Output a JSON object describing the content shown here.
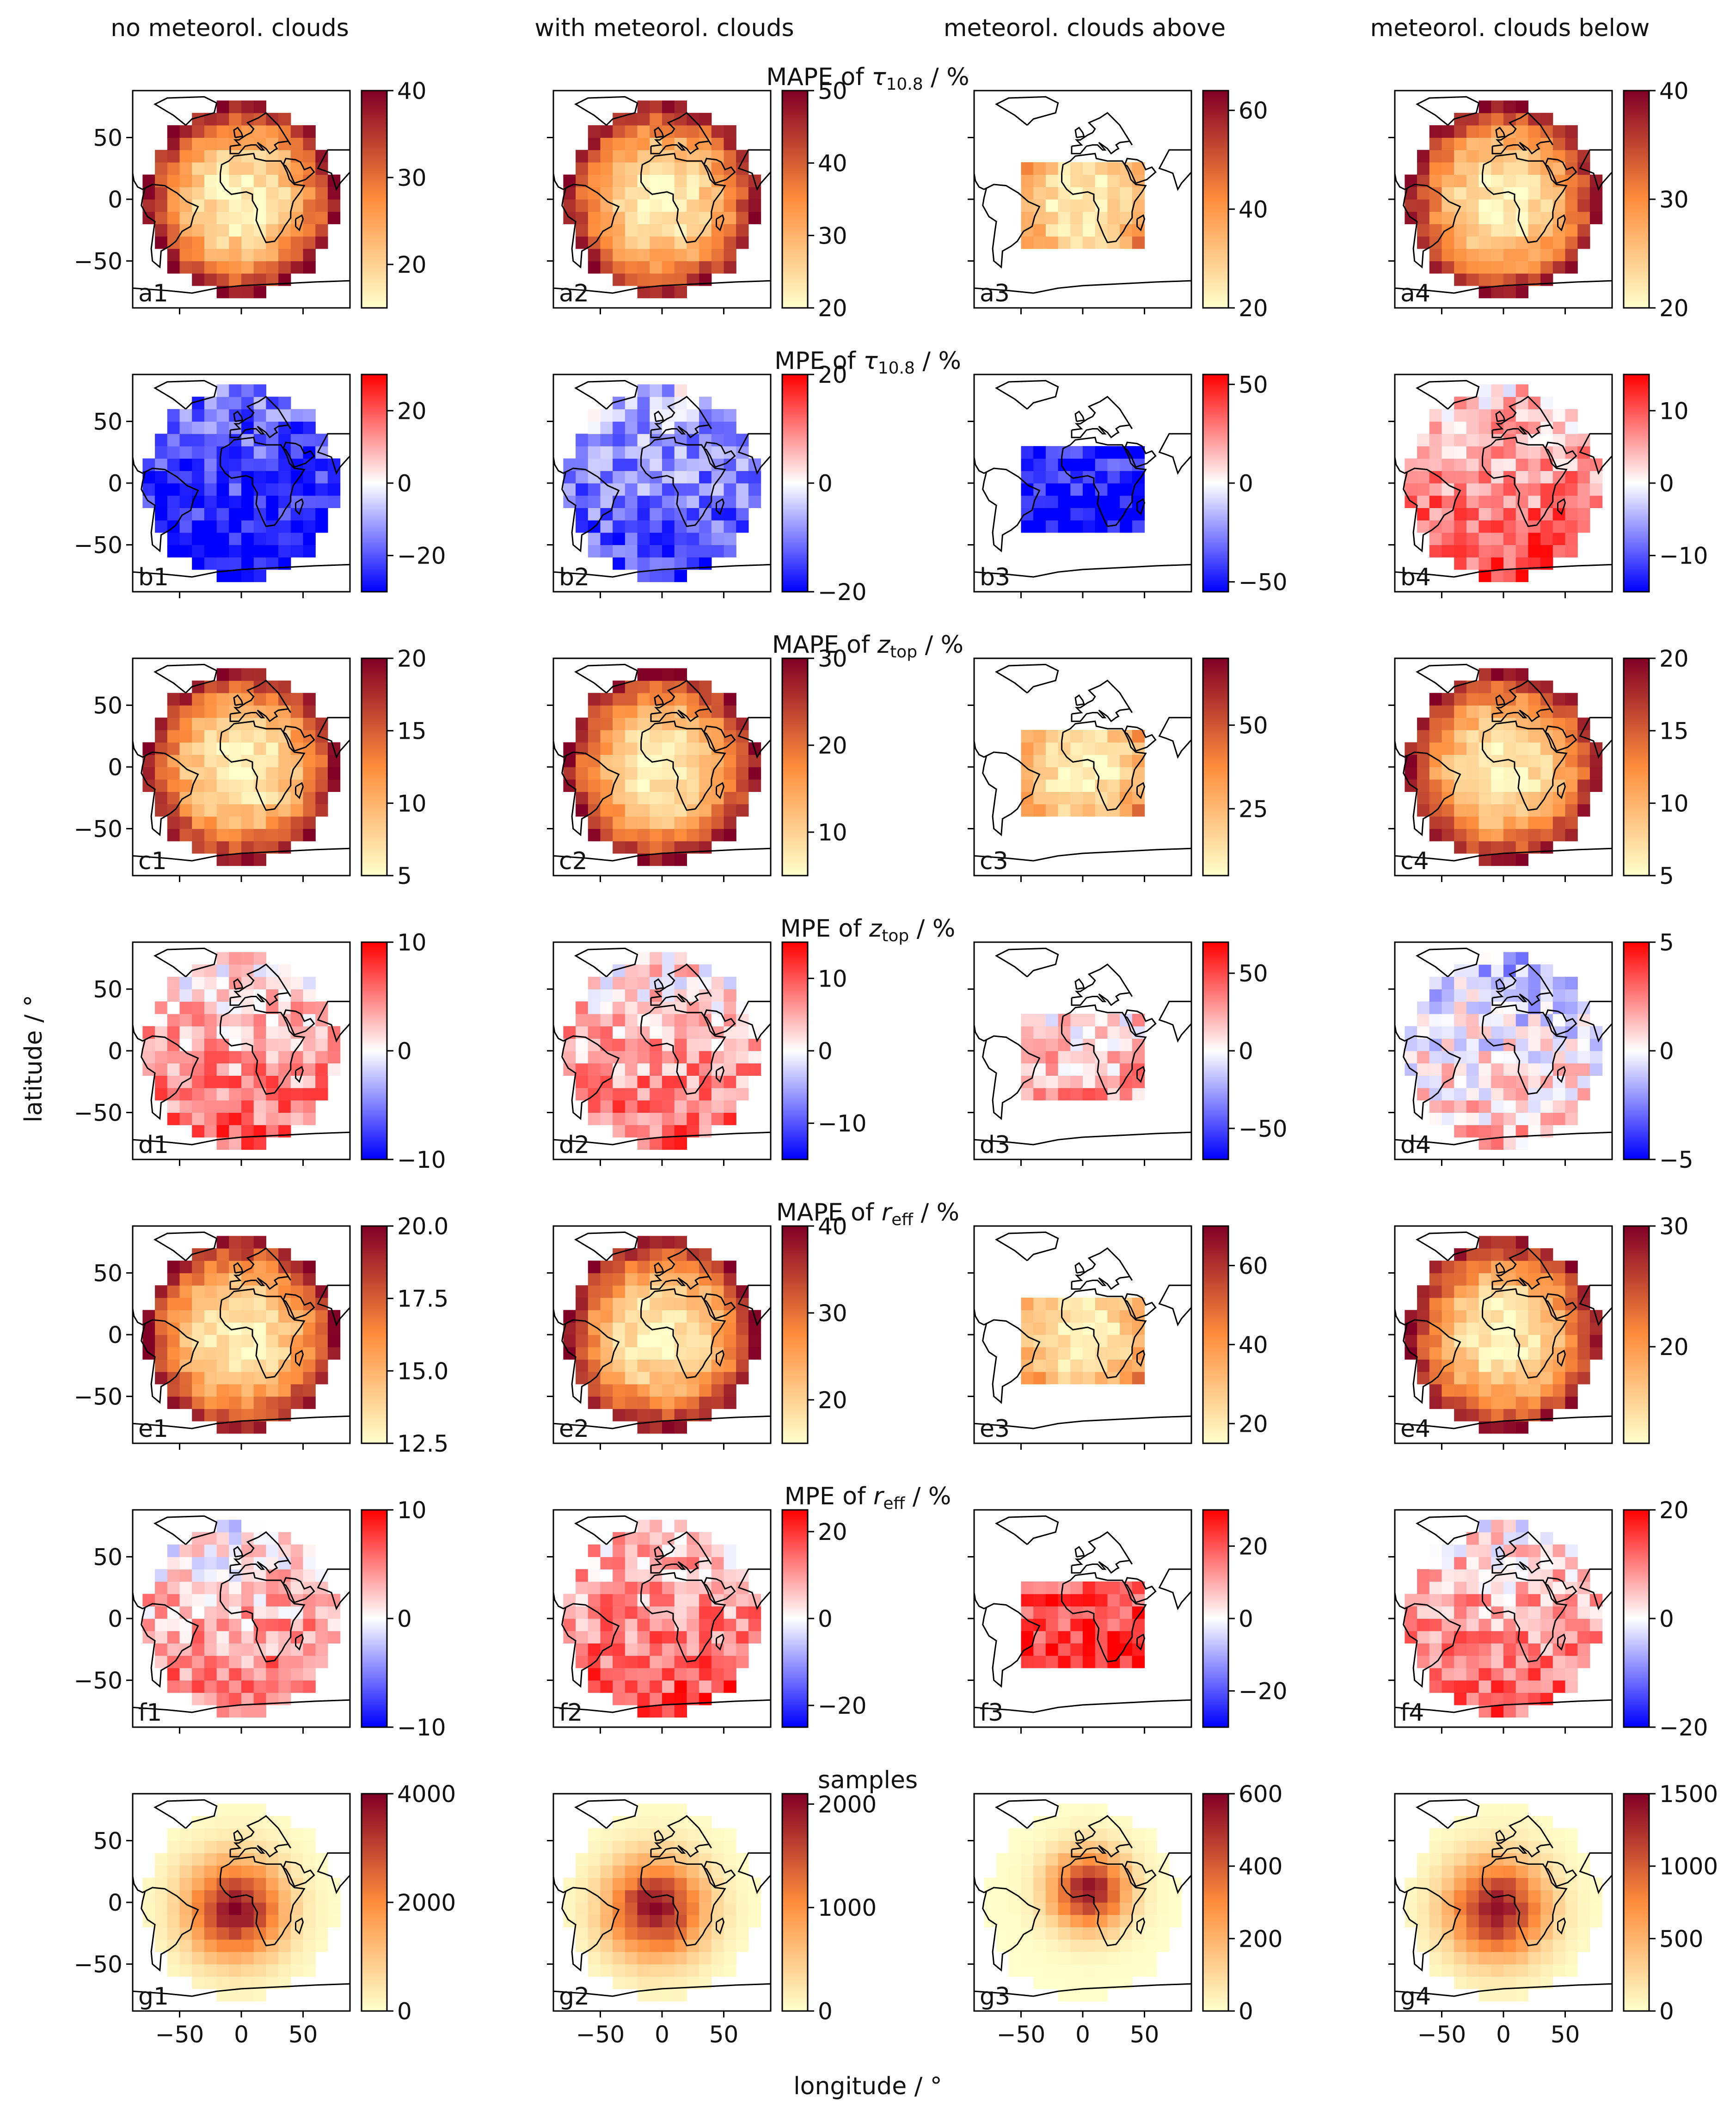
{
  "chart_data": {
    "type": "heatmap",
    "columns": [
      "no meteorol. clouds",
      "with meteorol. clouds",
      "meteorol. clouds above",
      "meteorol. clouds below"
    ],
    "rows": [
      {
        "title_main": "MAPE of ",
        "title_var": "τ",
        "title_sub": "10.8",
        "title_unit": " / %",
        "cmap": "seq",
        "panels": [
          {
            "label": "a1",
            "ticks": [
              "20",
              "30",
              "40"
            ],
            "vmin": 15,
            "vmax": 40,
            "tickvals": [
              20,
              30,
              40
            ],
            "disk": "full"
          },
          {
            "label": "a2",
            "ticks": [
              "20",
              "30",
              "40",
              "50"
            ],
            "vmin": 20,
            "vmax": 50,
            "tickvals": [
              20,
              30,
              40,
              50
            ],
            "disk": "full"
          },
          {
            "label": "a3",
            "ticks": [
              "20",
              "40",
              "60"
            ],
            "vmin": 20,
            "vmax": 64,
            "tickvals": [
              20,
              40,
              60
            ],
            "disk": "above"
          },
          {
            "label": "a4",
            "ticks": [
              "20",
              "30",
              "40"
            ],
            "vmin": 20,
            "vmax": 40,
            "tickvals": [
              20,
              30,
              40
            ],
            "disk": "full"
          }
        ]
      },
      {
        "title_main": "MPE of ",
        "title_var": "τ",
        "title_sub": "10.8",
        "title_unit": " / %",
        "cmap": "div",
        "panels": [
          {
            "label": "b1",
            "ticks": [
              "−20",
              "0",
              "20"
            ],
            "vmin": -30,
            "vmax": 30,
            "tickvals": [
              -20,
              0,
              20
            ],
            "disk": "full",
            "bias": -0.8
          },
          {
            "label": "b2",
            "ticks": [
              "−20",
              "0",
              "20"
            ],
            "vmin": -20,
            "vmax": 20,
            "tickvals": [
              -20,
              0,
              20
            ],
            "disk": "full",
            "bias": -0.5
          },
          {
            "label": "b3",
            "ticks": [
              "−50",
              "0",
              "50"
            ],
            "vmin": -55,
            "vmax": 55,
            "tickvals": [
              -50,
              0,
              50
            ],
            "disk": "above",
            "bias": -0.9
          },
          {
            "label": "b4",
            "ticks": [
              "−10",
              "0",
              "10"
            ],
            "vmin": -15,
            "vmax": 15,
            "tickvals": [
              -10,
              0,
              10
            ],
            "disk": "full",
            "bias": 0.45
          }
        ]
      },
      {
        "title_main": "MAPE of ",
        "title_var": "z",
        "title_sub": "top",
        "title_unit": " / %",
        "cmap": "seq",
        "panels": [
          {
            "label": "c1",
            "ticks": [
              "5",
              "10",
              "15",
              "20"
            ],
            "vmin": 5,
            "vmax": 20,
            "tickvals": [
              5,
              10,
              15,
              20
            ],
            "disk": "full"
          },
          {
            "label": "c2",
            "ticks": [
              "10",
              "20",
              "30"
            ],
            "vmin": 5,
            "vmax": 30,
            "tickvals": [
              10,
              20,
              30
            ],
            "disk": "full"
          },
          {
            "label": "c3",
            "ticks": [
              "25",
              "50"
            ],
            "vmin": 5,
            "vmax": 70,
            "tickvals": [
              25,
              50
            ],
            "disk": "above"
          },
          {
            "label": "c4",
            "ticks": [
              "5",
              "10",
              "15",
              "20"
            ],
            "vmin": 5,
            "vmax": 20,
            "tickvals": [
              5,
              10,
              15,
              20
            ],
            "disk": "full"
          }
        ]
      },
      {
        "title_main": "MPE of ",
        "title_var": "z",
        "title_sub": "top",
        "title_unit": " / %",
        "cmap": "div",
        "panels": [
          {
            "label": "d1",
            "ticks": [
              "−10",
              "0",
              "10"
            ],
            "vmin": -10,
            "vmax": 10,
            "tickvals": [
              -10,
              0,
              10
            ],
            "disk": "full",
            "bias": 0.35
          },
          {
            "label": "d2",
            "ticks": [
              "−10",
              "0",
              "10"
            ],
            "vmin": -15,
            "vmax": 15,
            "tickvals": [
              -10,
              0,
              10
            ],
            "disk": "full",
            "bias": 0.35
          },
          {
            "label": "d3",
            "ticks": [
              "−50",
              "0",
              "50"
            ],
            "vmin": -70,
            "vmax": 70,
            "tickvals": [
              -50,
              0,
              50
            ],
            "disk": "above",
            "bias": 0.25
          },
          {
            "label": "d4",
            "ticks": [
              "−5",
              "0",
              "5"
            ],
            "vmin": -5,
            "vmax": 5,
            "tickvals": [
              -5,
              0,
              5
            ],
            "disk": "full",
            "bias": 0.0
          }
        ]
      },
      {
        "title_main": "MAPE of ",
        "title_var": "r",
        "title_sub": "eff",
        "title_unit": " / %",
        "cmap": "seq",
        "panels": [
          {
            "label": "e1",
            "ticks": [
              "12.5",
              "15.0",
              "17.5",
              "20.0"
            ],
            "vmin": 12.5,
            "vmax": 20,
            "tickvals": [
              12.5,
              15,
              17.5,
              20
            ],
            "disk": "full"
          },
          {
            "label": "e2",
            "ticks": [
              "20",
              "30",
              "40"
            ],
            "vmin": 15,
            "vmax": 40,
            "tickvals": [
              20,
              30,
              40
            ],
            "disk": "full"
          },
          {
            "label": "e3",
            "ticks": [
              "20",
              "40",
              "60"
            ],
            "vmin": 15,
            "vmax": 70,
            "tickvals": [
              20,
              40,
              60
            ],
            "disk": "above"
          },
          {
            "label": "e4",
            "ticks": [
              "20",
              "30"
            ],
            "vmin": 12,
            "vmax": 30,
            "tickvals": [
              20,
              30
            ],
            "disk": "full"
          }
        ]
      },
      {
        "title_main": "MPE of ",
        "title_var": "r",
        "title_sub": "eff",
        "title_unit": " / %",
        "cmap": "div",
        "panels": [
          {
            "label": "f1",
            "ticks": [
              "−10",
              "0",
              "10"
            ],
            "vmin": -10,
            "vmax": 10,
            "tickvals": [
              -10,
              0,
              10
            ],
            "disk": "full",
            "bias": 0.3
          },
          {
            "label": "f2",
            "ticks": [
              "−20",
              "0",
              "20"
            ],
            "vmin": -25,
            "vmax": 25,
            "tickvals": [
              -20,
              0,
              20
            ],
            "disk": "full",
            "bias": 0.45
          },
          {
            "label": "f3",
            "ticks": [
              "−20",
              "0",
              "20"
            ],
            "vmin": -30,
            "vmax": 30,
            "tickvals": [
              -20,
              0,
              20
            ],
            "disk": "above",
            "bias": 0.75
          },
          {
            "label": "f4",
            "ticks": [
              "−20",
              "0",
              "20"
            ],
            "vmin": -20,
            "vmax": 20,
            "tickvals": [
              -20,
              0,
              20
            ],
            "disk": "full",
            "bias": 0.35
          }
        ]
      },
      {
        "title_main": "samples",
        "title_var": "",
        "title_sub": "",
        "title_unit": "",
        "cmap": "seq",
        "panels": [
          {
            "label": "g1",
            "ticks": [
              "0",
              "2000",
              "4000"
            ],
            "vmin": 0,
            "vmax": 4000,
            "tickvals": [
              0,
              2000,
              4000
            ],
            "disk": "samples"
          },
          {
            "label": "g2",
            "ticks": [
              "0",
              "1000",
              "2000"
            ],
            "vmin": 0,
            "vmax": 2100,
            "tickvals": [
              0,
              1000,
              2000
            ],
            "disk": "samples"
          },
          {
            "label": "g3",
            "ticks": [
              "0",
              "200",
              "400",
              "600"
            ],
            "vmin": 0,
            "vmax": 600,
            "tickvals": [
              0,
              200,
              400,
              600
            ],
            "disk": "samples"
          },
          {
            "label": "g4",
            "ticks": [
              "0",
              "500",
              "1000",
              "1500"
            ],
            "vmin": 0,
            "vmax": 1500,
            "tickvals": [
              0,
              500,
              1000,
              1500
            ],
            "disk": "samples"
          }
        ]
      }
    ],
    "lat_ticks": [
      "−50",
      "0",
      "50"
    ],
    "lon_ticks": [
      "−50",
      "0",
      "50"
    ],
    "xlabel": "longitude / °",
    "ylabel": "latitude / °",
    "colors": {
      "seq_low": "#ffffcc",
      "seq_mid": "#fd8d3c",
      "seq_high": "#800026",
      "div_low": "#0000ff",
      "div_mid": "#ffffff",
      "div_high": "#ff0000"
    }
  }
}
